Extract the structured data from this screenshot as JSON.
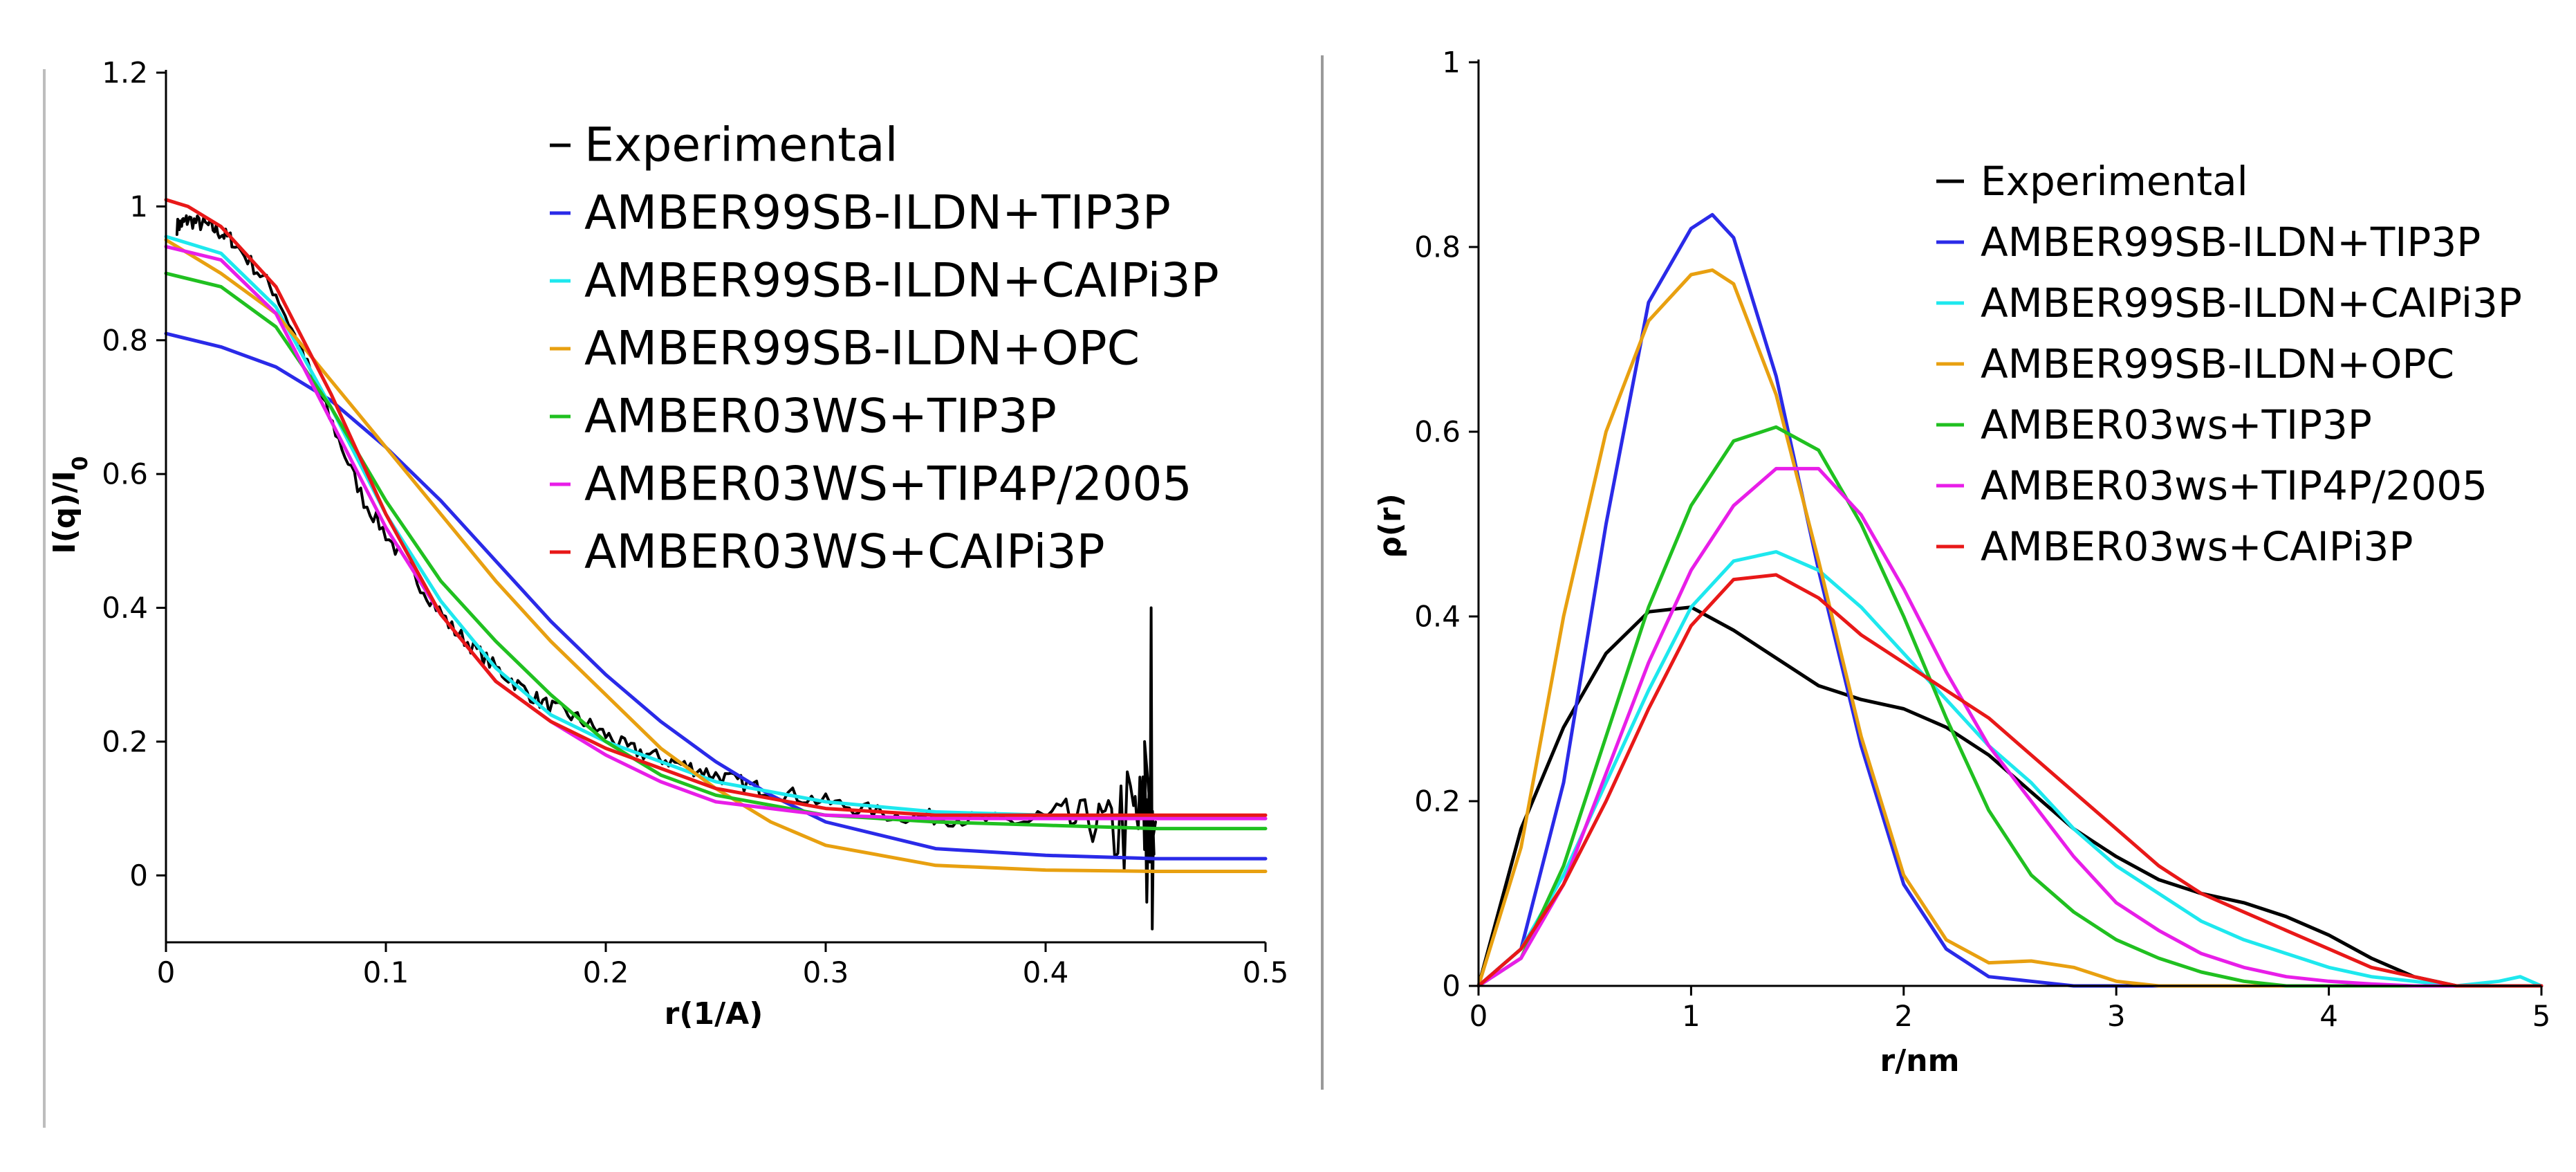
{
  "colors": {
    "experimental": "#000000",
    "amber99_tip3p": "#2a2ae8",
    "amber99_caipi3p": "#1ee8ee",
    "amber99_opc": "#e8a010",
    "amber03_tip3p": "#20c020",
    "amber03_tip4p": "#e81ee8",
    "amber03_caipi3p": "#e81818"
  },
  "chart_data": [
    {
      "type": "line",
      "title": "",
      "xlabel": "r(1/A)",
      "ylabel": "I(q)/I",
      "ylabel_subscript": "0",
      "xlim": [
        0,
        0.5
      ],
      "ylim": [
        -0.1,
        1.2
      ],
      "xticks": [
        0,
        0.1,
        0.2,
        0.3,
        0.4,
        0.5
      ],
      "xtick_labels": [
        "0",
        "0.1",
        "0.2",
        "0.3",
        "0.4",
        "0.5"
      ],
      "yticks": [
        0,
        0.2,
        0.4,
        0.6,
        0.8,
        1,
        1.2
      ],
      "ytick_labels": [
        "0",
        "0.2",
        "0.4",
        "0.6",
        "0.8",
        "1",
        "1.2"
      ],
      "legend_position": "top-right",
      "series": [
        {
          "name": "Experimental",
          "color_key": "experimental",
          "noisy": true,
          "x": [
            0.005,
            0.01,
            0.02,
            0.03,
            0.05,
            0.07,
            0.09,
            0.11,
            0.13,
            0.15,
            0.17,
            0.19,
            0.21,
            0.23,
            0.25,
            0.27,
            0.3,
            0.33,
            0.36,
            0.39,
            0.42,
            0.44,
            0.45
          ],
          "y": [
            0.97,
            0.98,
            0.97,
            0.95,
            0.87,
            0.72,
            0.56,
            0.46,
            0.37,
            0.31,
            0.26,
            0.23,
            0.19,
            0.17,
            0.15,
            0.13,
            0.11,
            0.09,
            0.085,
            0.08,
            0.08,
            0.08,
            0.08
          ]
        },
        {
          "name": "AMBER99SB-ILDN+TIP3P",
          "color_key": "amber99_tip3p",
          "x": [
            0,
            0.025,
            0.05,
            0.075,
            0.1,
            0.125,
            0.15,
            0.175,
            0.2,
            0.225,
            0.25,
            0.275,
            0.3,
            0.35,
            0.4,
            0.45,
            0.5
          ],
          "y": [
            0.81,
            0.79,
            0.76,
            0.71,
            0.64,
            0.56,
            0.47,
            0.38,
            0.3,
            0.23,
            0.17,
            0.12,
            0.08,
            0.04,
            0.03,
            0.025,
            0.025
          ]
        },
        {
          "name": "AMBER99SB-ILDN+CAIPi3P",
          "color_key": "amber99_caipi3p",
          "x": [
            0,
            0.025,
            0.05,
            0.075,
            0.1,
            0.125,
            0.15,
            0.175,
            0.2,
            0.25,
            0.3,
            0.35,
            0.4,
            0.45,
            0.5
          ],
          "y": [
            0.955,
            0.93,
            0.85,
            0.7,
            0.54,
            0.41,
            0.31,
            0.24,
            0.2,
            0.14,
            0.11,
            0.095,
            0.09,
            0.087,
            0.085
          ]
        },
        {
          "name": "AMBER99SB-ILDN+OPC",
          "color_key": "amber99_opc",
          "x": [
            0,
            0.025,
            0.05,
            0.075,
            0.1,
            0.125,
            0.15,
            0.175,
            0.2,
            0.225,
            0.25,
            0.275,
            0.3,
            0.35,
            0.4,
            0.45,
            0.5
          ],
          "y": [
            0.95,
            0.9,
            0.84,
            0.74,
            0.64,
            0.54,
            0.44,
            0.35,
            0.27,
            0.19,
            0.13,
            0.08,
            0.045,
            0.015,
            0.008,
            0.006,
            0.006
          ]
        },
        {
          "name": "AMBER03WS+TIP3P",
          "color_key": "amber03_tip3p",
          "x": [
            0,
            0.025,
            0.05,
            0.075,
            0.1,
            0.125,
            0.15,
            0.175,
            0.2,
            0.225,
            0.25,
            0.3,
            0.35,
            0.4,
            0.45,
            0.5
          ],
          "y": [
            0.9,
            0.88,
            0.82,
            0.7,
            0.56,
            0.44,
            0.35,
            0.27,
            0.2,
            0.15,
            0.12,
            0.09,
            0.08,
            0.075,
            0.07,
            0.07
          ]
        },
        {
          "name": "AMBER03WS+TIP4P/2005",
          "color_key": "amber03_tip4p",
          "x": [
            0,
            0.025,
            0.05,
            0.075,
            0.1,
            0.125,
            0.15,
            0.175,
            0.2,
            0.225,
            0.25,
            0.3,
            0.35,
            0.4,
            0.45,
            0.5
          ],
          "y": [
            0.94,
            0.92,
            0.84,
            0.68,
            0.52,
            0.39,
            0.29,
            0.23,
            0.18,
            0.14,
            0.11,
            0.09,
            0.085,
            0.085,
            0.085,
            0.085
          ]
        },
        {
          "name": "AMBER03WS+CAIPi3P",
          "color_key": "amber03_caipi3p",
          "x": [
            0,
            0.01,
            0.025,
            0.05,
            0.075,
            0.1,
            0.125,
            0.15,
            0.175,
            0.2,
            0.225,
            0.25,
            0.3,
            0.35,
            0.4,
            0.45,
            0.5
          ],
          "y": [
            1.01,
            1.0,
            0.97,
            0.88,
            0.72,
            0.54,
            0.39,
            0.29,
            0.23,
            0.19,
            0.16,
            0.13,
            0.1,
            0.09,
            0.09,
            0.09,
            0.09
          ]
        }
      ]
    },
    {
      "type": "line",
      "title": "",
      "xlabel": "r/nm",
      "ylabel": "ρ(r)",
      "xlim": [
        0,
        5
      ],
      "ylim": [
        0,
        1
      ],
      "xticks": [
        0,
        1,
        2,
        3,
        4,
        5
      ],
      "xtick_labels": [
        "0",
        "1",
        "2",
        "3",
        "4",
        "5"
      ],
      "yticks": [
        0,
        0.2,
        0.4,
        0.6,
        0.8,
        1
      ],
      "ytick_labels": [
        "0",
        "0.2",
        "0.4",
        "0.6",
        "0.8",
        "1"
      ],
      "legend_position": "top-right",
      "series": [
        {
          "name": "Experimental",
          "color_key": "experimental",
          "x": [
            0,
            0.2,
            0.4,
            0.6,
            0.8,
            1.0,
            1.2,
            1.4,
            1.6,
            1.8,
            2.0,
            2.2,
            2.4,
            2.6,
            2.8,
            3.0,
            3.2,
            3.4,
            3.6,
            3.8,
            4.0,
            4.2,
            4.4,
            4.6,
            4.8,
            5.0
          ],
          "y": [
            0,
            0.17,
            0.28,
            0.36,
            0.405,
            0.41,
            0.385,
            0.355,
            0.325,
            0.31,
            0.3,
            0.28,
            0.25,
            0.21,
            0.17,
            0.14,
            0.115,
            0.1,
            0.09,
            0.075,
            0.055,
            0.03,
            0.01,
            0,
            0,
            0
          ]
        },
        {
          "name": "AMBER99SB-ILDN+TIP3P",
          "color_key": "amber99_tip3p",
          "x": [
            0,
            0.2,
            0.4,
            0.6,
            0.8,
            1.0,
            1.1,
            1.2,
            1.4,
            1.6,
            1.8,
            2.0,
            2.2,
            2.4,
            2.6,
            2.8,
            3.0,
            3.5,
            4.0,
            4.5,
            5.0
          ],
          "y": [
            0,
            0.04,
            0.22,
            0.5,
            0.74,
            0.82,
            0.835,
            0.81,
            0.66,
            0.45,
            0.26,
            0.11,
            0.04,
            0.01,
            0.005,
            0,
            0,
            0,
            0,
            0,
            0
          ]
        },
        {
          "name": "AMBER99SB-ILDN+CAIPi3P",
          "color_key": "amber99_caipi3p",
          "x": [
            0,
            0.2,
            0.4,
            0.6,
            0.8,
            1.0,
            1.2,
            1.4,
            1.6,
            1.8,
            2.0,
            2.2,
            2.4,
            2.6,
            2.8,
            3.0,
            3.2,
            3.4,
            3.6,
            3.8,
            4.0,
            4.2,
            4.4,
            4.6,
            4.8,
            4.9,
            5.0
          ],
          "y": [
            0,
            0.04,
            0.12,
            0.22,
            0.32,
            0.41,
            0.46,
            0.47,
            0.45,
            0.41,
            0.36,
            0.31,
            0.26,
            0.22,
            0.17,
            0.13,
            0.1,
            0.07,
            0.05,
            0.035,
            0.02,
            0.01,
            0.005,
            0,
            0.005,
            0.01,
            0
          ]
        },
        {
          "name": "AMBER99SB-ILDN+OPC",
          "color_key": "amber99_opc",
          "x": [
            0,
            0.2,
            0.4,
            0.6,
            0.8,
            1.0,
            1.1,
            1.2,
            1.4,
            1.6,
            1.8,
            2.0,
            2.2,
            2.4,
            2.6,
            2.8,
            3.0,
            3.2,
            3.5,
            4.0,
            4.5,
            5.0
          ],
          "y": [
            0,
            0.15,
            0.4,
            0.6,
            0.72,
            0.77,
            0.775,
            0.76,
            0.64,
            0.46,
            0.27,
            0.12,
            0.05,
            0.025,
            0.027,
            0.02,
            0.005,
            0,
            0,
            0,
            0,
            0
          ]
        },
        {
          "name": "AMBER03ws+TIP3P",
          "color_key": "amber03_tip3p",
          "x": [
            0,
            0.2,
            0.4,
            0.6,
            0.8,
            1.0,
            1.2,
            1.4,
            1.6,
            1.8,
            2.0,
            2.2,
            2.4,
            2.6,
            2.8,
            3.0,
            3.2,
            3.4,
            3.6,
            3.8,
            4.0,
            4.5,
            5.0
          ],
          "y": [
            0,
            0.03,
            0.13,
            0.27,
            0.41,
            0.52,
            0.59,
            0.605,
            0.58,
            0.5,
            0.4,
            0.29,
            0.19,
            0.12,
            0.08,
            0.05,
            0.03,
            0.015,
            0.005,
            0,
            0,
            0,
            0
          ]
        },
        {
          "name": "AMBER03ws+TIP4P/2005",
          "color_key": "amber03_tip4p",
          "x": [
            0,
            0.2,
            0.4,
            0.6,
            0.8,
            1.0,
            1.2,
            1.4,
            1.6,
            1.8,
            2.0,
            2.2,
            2.4,
            2.6,
            2.8,
            3.0,
            3.2,
            3.4,
            3.6,
            3.8,
            4.0,
            4.2,
            4.4,
            4.6,
            5.0
          ],
          "y": [
            0,
            0.03,
            0.11,
            0.23,
            0.35,
            0.45,
            0.52,
            0.56,
            0.56,
            0.51,
            0.43,
            0.34,
            0.26,
            0.2,
            0.14,
            0.09,
            0.06,
            0.035,
            0.02,
            0.01,
            0.005,
            0.002,
            0,
            0,
            0
          ]
        },
        {
          "name": "AMBER03ws+CAIPi3P",
          "color_key": "amber03_caipi3p",
          "x": [
            0,
            0.2,
            0.4,
            0.6,
            0.8,
            1.0,
            1.2,
            1.4,
            1.6,
            1.8,
            2.0,
            2.2,
            2.4,
            2.6,
            2.8,
            3.0,
            3.2,
            3.4,
            3.6,
            3.8,
            4.0,
            4.2,
            4.4,
            4.6,
            4.8,
            5.0
          ],
          "y": [
            0,
            0.04,
            0.11,
            0.2,
            0.3,
            0.39,
            0.44,
            0.445,
            0.42,
            0.38,
            0.35,
            0.32,
            0.29,
            0.25,
            0.21,
            0.17,
            0.13,
            0.1,
            0.08,
            0.06,
            0.04,
            0.02,
            0.01,
            0,
            0,
            0
          ]
        }
      ]
    }
  ]
}
